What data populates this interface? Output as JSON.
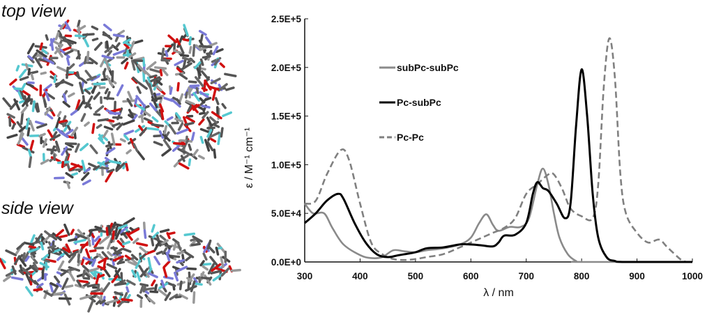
{
  "panels": {
    "top_view_label": "top view",
    "side_view_label": "side view"
  },
  "chart_data": {
    "type": "line",
    "title": "",
    "xlabel": "λ / nm",
    "ylabel": "ε / M⁻¹ cm⁻¹",
    "xlim": [
      300,
      1000
    ],
    "ylim": [
      0,
      250000
    ],
    "x_ticks": [
      "300",
      "400",
      "500",
      "600",
      "700",
      "800",
      "900",
      "1000"
    ],
    "y_ticks": [
      "0.0E+0",
      "5.0E+4",
      "1.0E+5",
      "1.5E+5",
      "2.0E+5",
      "2.5E+5"
    ],
    "grid": false,
    "legend_position": "top-left",
    "series": [
      {
        "name": "subPc-subPc",
        "color": "#8a8a8a",
        "style": "solid",
        "points": [
          [
            300,
            60000
          ],
          [
            315,
            50000
          ],
          [
            335,
            50000
          ],
          [
            350,
            35000
          ],
          [
            370,
            18000
          ],
          [
            400,
            7000
          ],
          [
            420,
            4000
          ],
          [
            440,
            5000
          ],
          [
            460,
            12000
          ],
          [
            480,
            11000
          ],
          [
            500,
            10000
          ],
          [
            520,
            12000
          ],
          [
            550,
            14000
          ],
          [
            580,
            18000
          ],
          [
            600,
            25000
          ],
          [
            615,
            40000
          ],
          [
            628,
            49000
          ],
          [
            640,
            38000
          ],
          [
            650,
            32000
          ],
          [
            670,
            36000
          ],
          [
            690,
            36000
          ],
          [
            705,
            45000
          ],
          [
            720,
            80000
          ],
          [
            730,
            96000
          ],
          [
            740,
            80000
          ],
          [
            750,
            50000
          ],
          [
            760,
            25000
          ],
          [
            775,
            8000
          ],
          [
            790,
            1000
          ],
          [
            800,
            0
          ],
          [
            1000,
            0
          ]
        ]
      },
      {
        "name": "Pc-subPc",
        "color": "#000000",
        "style": "solid",
        "points": [
          [
            300,
            40000
          ],
          [
            320,
            50000
          ],
          [
            340,
            63000
          ],
          [
            360,
            70000
          ],
          [
            370,
            65000
          ],
          [
            390,
            40000
          ],
          [
            410,
            20000
          ],
          [
            430,
            8000
          ],
          [
            450,
            5000
          ],
          [
            470,
            7000
          ],
          [
            500,
            10000
          ],
          [
            520,
            14000
          ],
          [
            550,
            15000
          ],
          [
            580,
            18000
          ],
          [
            600,
            18000
          ],
          [
            620,
            17000
          ],
          [
            640,
            16000
          ],
          [
            650,
            20000
          ],
          [
            660,
            27000
          ],
          [
            680,
            28000
          ],
          [
            700,
            40000
          ],
          [
            712,
            70000
          ],
          [
            720,
            82000
          ],
          [
            730,
            76000
          ],
          [
            740,
            73000
          ],
          [
            755,
            60000
          ],
          [
            770,
            45000
          ],
          [
            780,
            60000
          ],
          [
            790,
            140000
          ],
          [
            800,
            198000
          ],
          [
            810,
            150000
          ],
          [
            820,
            70000
          ],
          [
            830,
            25000
          ],
          [
            845,
            5000
          ],
          [
            860,
            1000
          ],
          [
            880,
            0
          ],
          [
            1000,
            0
          ]
        ]
      },
      {
        "name": "Pc-Pc",
        "color": "#808080",
        "style": "dashed",
        "points": [
          [
            300,
            60000
          ],
          [
            320,
            63000
          ],
          [
            340,
            90000
          ],
          [
            365,
            115000
          ],
          [
            380,
            105000
          ],
          [
            400,
            60000
          ],
          [
            420,
            20000
          ],
          [
            440,
            8000
          ],
          [
            460,
            3000
          ],
          [
            480,
            2000
          ],
          [
            500,
            3000
          ],
          [
            520,
            5000
          ],
          [
            550,
            8000
          ],
          [
            580,
            15000
          ],
          [
            620,
            25000
          ],
          [
            640,
            30000
          ],
          [
            660,
            35000
          ],
          [
            680,
            45000
          ],
          [
            700,
            70000
          ],
          [
            720,
            80000
          ],
          [
            740,
            90000
          ],
          [
            750,
            90000
          ],
          [
            765,
            75000
          ],
          [
            780,
            55000
          ],
          [
            800,
            47000
          ],
          [
            820,
            45000
          ],
          [
            830,
            80000
          ],
          [
            840,
            180000
          ],
          [
            850,
            230000
          ],
          [
            860,
            190000
          ],
          [
            870,
            90000
          ],
          [
            880,
            50000
          ],
          [
            900,
            30000
          ],
          [
            920,
            20000
          ],
          [
            940,
            23000
          ],
          [
            955,
            15000
          ],
          [
            980,
            2000
          ],
          [
            990,
            0
          ]
        ]
      }
    ]
  }
}
